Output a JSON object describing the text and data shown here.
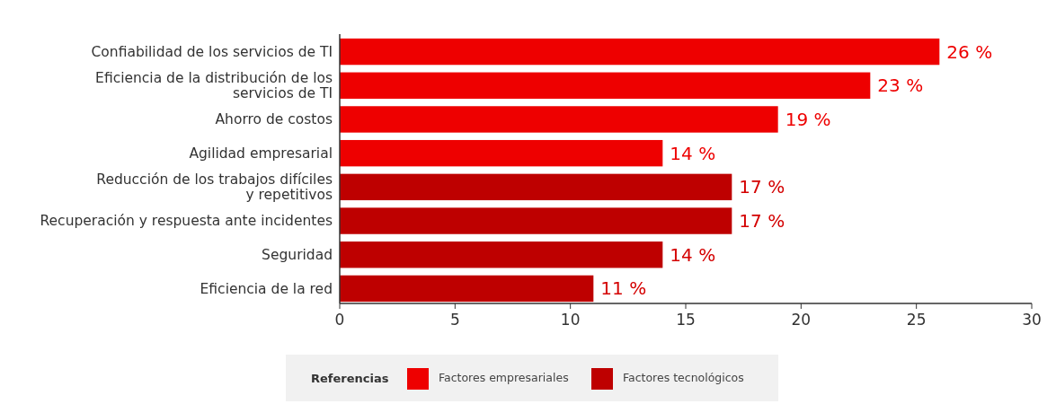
{
  "chart_data": {
    "type": "bar",
    "orientation": "horizontal",
    "categories": [
      "Confiabilidad de los servicios de TI",
      "Eficiencia de la distribución de los\nservicios de TI",
      "Ahorro de costos",
      "Agilidad empresarial",
      "Reducción de los trabajos difíciles\ny repetitivos",
      "Recuperación y respuesta ante incidentes",
      "Seguridad",
      "Eficiencia de la red"
    ],
    "series": [
      {
        "name": "Factores empresariales",
        "color": "#ee0000",
        "values": [
          26,
          23,
          19,
          14,
          null,
          null,
          null,
          null
        ],
        "value_labels": [
          "26 %",
          "23 %",
          "19 %",
          "14 %",
          null,
          null,
          null,
          null
        ]
      },
      {
        "name": "Factores tecnológicos",
        "color": "#be0000",
        "values": [
          null,
          null,
          null,
          null,
          17,
          17,
          14,
          11
        ],
        "value_labels": [
          null,
          null,
          null,
          null,
          "17 %",
          "17 %",
          "14 %",
          "11 %"
        ]
      }
    ],
    "xlim": [
      0,
      30
    ],
    "xticks": [
      0,
      5,
      10,
      15,
      20,
      25,
      30
    ],
    "legend": "bottom",
    "legend_title": "Referencias",
    "grid": false
  }
}
